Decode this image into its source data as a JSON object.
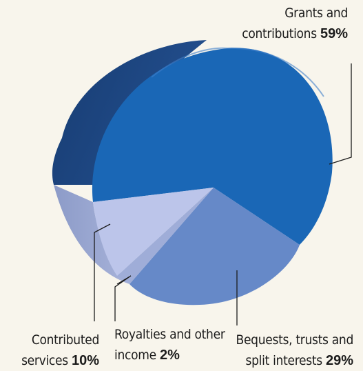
{
  "chart_data": {
    "type": "pie",
    "title": "",
    "slices": [
      {
        "label_line1": "Grants and",
        "label_line2": "contributions",
        "value": 59,
        "value_text": "59%",
        "color": "#1a67b6"
      },
      {
        "label_line1": "Bequests, trusts and",
        "label_line2": "split interests",
        "value": 29,
        "value_text": "29%",
        "color": "#6689c8"
      },
      {
        "label_line1": "Royalties and other",
        "label_line2": "income",
        "value": 2,
        "value_text": "2%",
        "color": "#9fadd8"
      },
      {
        "label_line1": "Contributed",
        "label_line2": "services",
        "value": 10,
        "value_text": "10%",
        "color": "#bcc5ea"
      }
    ]
  }
}
